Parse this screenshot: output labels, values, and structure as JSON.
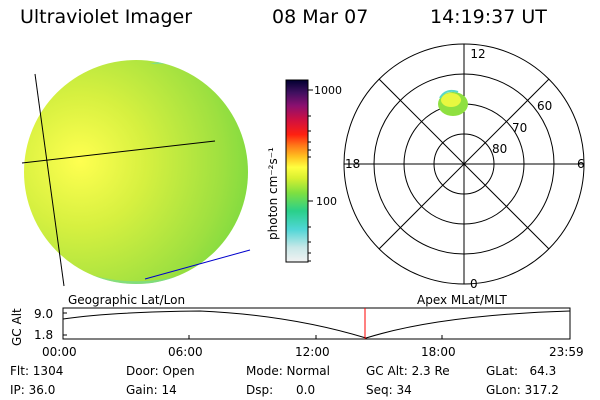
{
  "header": {
    "instrument": "Ultraviolet Imager",
    "date": "08 Mar 07",
    "time": "14:19:37 UT"
  },
  "colorbar": {
    "label": "photon cm⁻²s⁻¹",
    "ticks": [
      "1000",
      "100"
    ],
    "ticks_values": [
      1000,
      100
    ],
    "stops": [
      "#f2f2f2",
      "#c8e8e8",
      "#4fd6d6",
      "#2ad08a",
      "#7fe040",
      "#d8f030",
      "#ffff40",
      "#ffc020",
      "#ff7818",
      "#ff2010",
      "#d01040",
      "#8a1070",
      "#401060",
      "#000030"
    ]
  },
  "labels": {
    "left_projection": "Geographic Lat/Lon",
    "right_projection": "Apex MLat/MLT"
  },
  "polar": {
    "mlt_labels": {
      "top": "12",
      "bottom": "0",
      "left": "18",
      "right": "6"
    },
    "lat_labels": [
      "60",
      "70",
      "80"
    ]
  },
  "altitude_plot": {
    "ylabel": "GC Alt",
    "y_ticks": [
      "9.0",
      "1.8"
    ],
    "x_ticks": [
      "00:00",
      "06:00",
      "12:00",
      "18:00",
      "23:59"
    ],
    "marker_time": "14:19"
  },
  "info": {
    "flt": "Flt: 1304",
    "ip": "IP: 36.0",
    "door": "Door: Open",
    "gain": "Gain: 14",
    "mode": "Mode: Normal",
    "dsp": "Dsp:      0.0",
    "gc_alt": "GC Alt: 2.3 Re",
    "seq": "Seq: 34",
    "glat": "GLat:   64.3",
    "glon": "GLon: 317.2"
  },
  "colors": {
    "marker": "#ff0000",
    "blue_line": "#0000cc"
  }
}
